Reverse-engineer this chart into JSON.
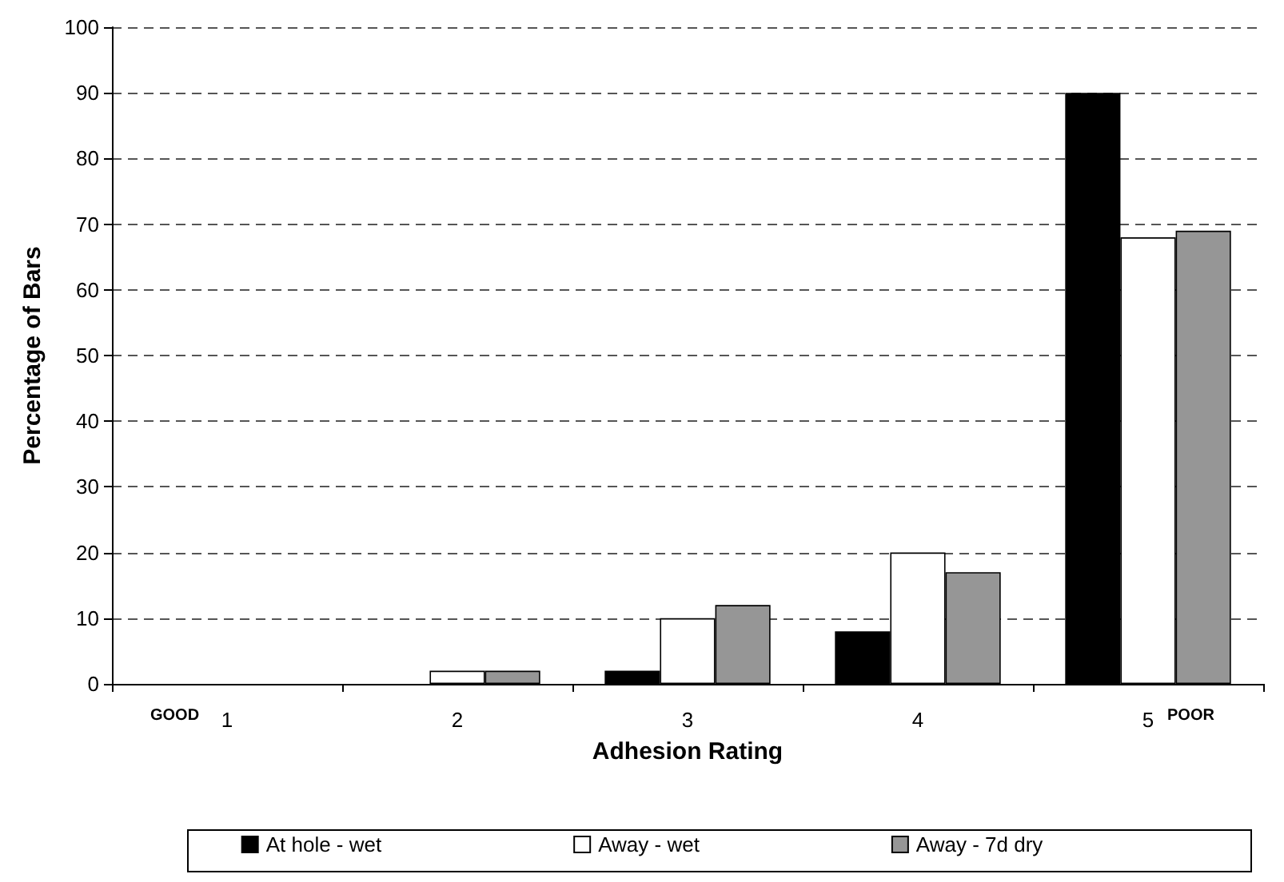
{
  "chart_data": {
    "type": "bar",
    "xlabel": "Adhesion Rating",
    "ylabel": "Percentage of Bars",
    "categories": [
      "1",
      "2",
      "3",
      "4",
      "5"
    ],
    "series": [
      {
        "name": "At hole - wet",
        "color": "#000000",
        "values": [
          0,
          0,
          2,
          8,
          90
        ]
      },
      {
        "name": "Away - wet",
        "color": "#ffffff",
        "values": [
          0,
          2,
          10,
          20,
          68
        ]
      },
      {
        "name": "Away - 7d dry",
        "color": "#969696",
        "values": [
          0,
          2,
          12,
          17,
          69
        ]
      }
    ],
    "ylim": [
      0,
      100
    ],
    "yticks": [
      0,
      10,
      20,
      30,
      40,
      50,
      60,
      70,
      80,
      90,
      100
    ],
    "grid": "y",
    "legend": "bottom",
    "annotations": [
      "GOOD",
      "POOR"
    ]
  }
}
